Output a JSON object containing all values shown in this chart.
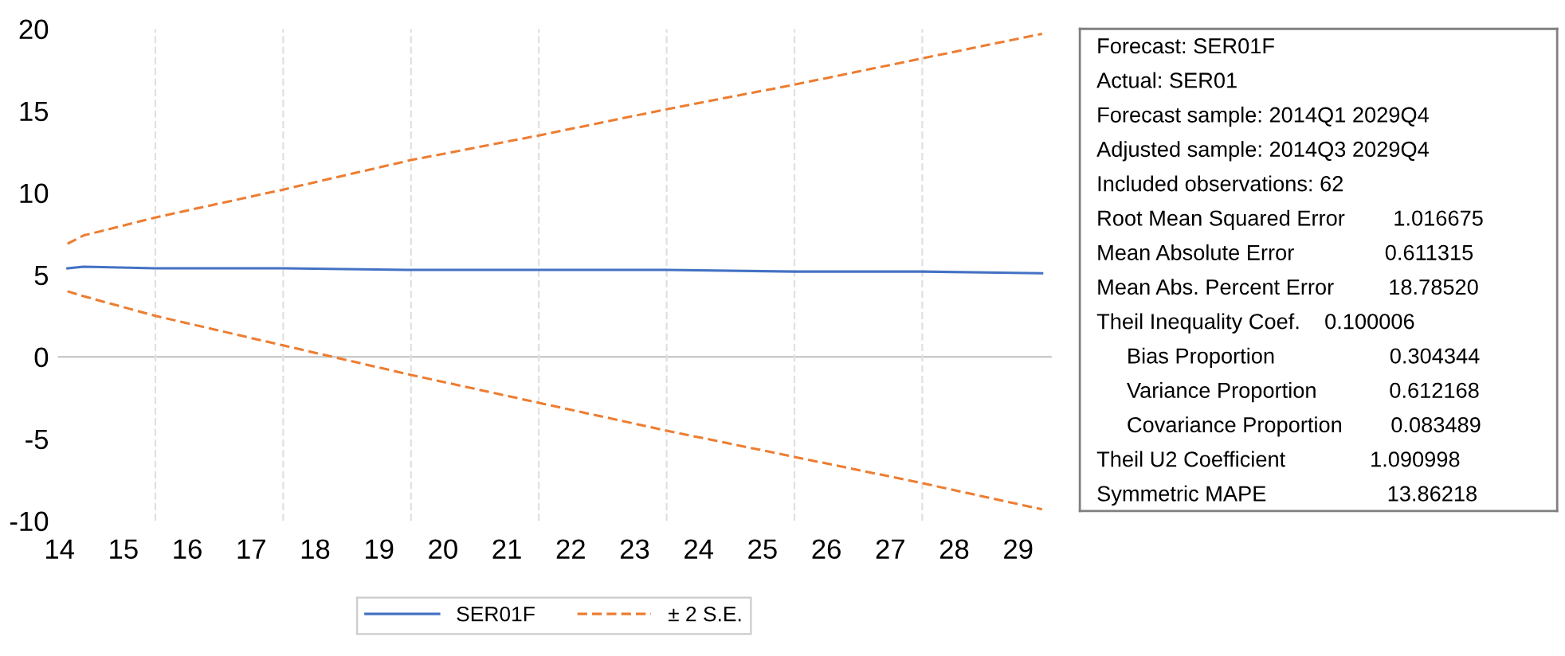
{
  "chart_data": {
    "type": "line",
    "xlim": [
      14.35,
      29.9
    ],
    "ylim": [
      -10,
      20
    ],
    "xticks": [
      {
        "value": 14.375,
        "label": "14"
      },
      {
        "value": 15.375,
        "label": "15"
      },
      {
        "value": 16.375,
        "label": "16"
      },
      {
        "value": 17.375,
        "label": "17"
      },
      {
        "value": 18.375,
        "label": "18"
      },
      {
        "value": 19.375,
        "label": "19"
      },
      {
        "value": 20.375,
        "label": "20"
      },
      {
        "value": 21.375,
        "label": "21"
      },
      {
        "value": 22.375,
        "label": "22"
      },
      {
        "value": 23.375,
        "label": "23"
      },
      {
        "value": 24.375,
        "label": "24"
      },
      {
        "value": 25.375,
        "label": "25"
      },
      {
        "value": 26.375,
        "label": "26"
      },
      {
        "value": 27.375,
        "label": "27"
      },
      {
        "value": 28.375,
        "label": "28"
      },
      {
        "value": 29.375,
        "label": "29"
      }
    ],
    "yticks": [
      -10,
      -5,
      0,
      5,
      10,
      15,
      20
    ],
    "series": [
      {
        "name": "SER01F",
        "color": "#4472c4",
        "line_style": "solid",
        "x": [
          14.5,
          14.75,
          15.875,
          17.875,
          19.875,
          21.875,
          23.875,
          25.875,
          27.875,
          29.75
        ],
        "values": [
          5.4,
          5.5,
          5.4,
          5.4,
          5.3,
          5.3,
          5.3,
          5.2,
          5.2,
          5.1
        ]
      },
      {
        "name": "± 2 S.E.",
        "color": "#ed7d31",
        "line_style": "dashed",
        "x": [
          14.5,
          14.75,
          15.875,
          17.875,
          19.875,
          21.875,
          23.875,
          25.875,
          27.875,
          29.75
        ],
        "values": [
          6.9,
          7.4,
          8.5,
          10.2,
          12.0,
          13.5,
          15.1,
          16.6,
          18.2,
          19.7
        ]
      },
      {
        "color": "#ed7d31",
        "line_style": "dashed",
        "x": [
          14.5,
          14.75,
          15.875,
          17.875,
          19.875,
          21.875,
          23.875,
          25.875,
          27.875,
          29.75
        ],
        "values": [
          4.0,
          3.7,
          2.5,
          0.7,
          -1.1,
          -2.8,
          -4.5,
          -6.1,
          -7.7,
          -9.3
        ]
      }
    ],
    "ref_lines": [
      {
        "axis": "y",
        "value": 0,
        "color": "#bfbfbf",
        "line_style": "solid"
      },
      {
        "axis": "x",
        "value": 15.875,
        "color": "#e0e0e0",
        "line_style": "dashed"
      },
      {
        "axis": "x",
        "value": 17.875,
        "color": "#e0e0e0",
        "line_style": "dashed"
      },
      {
        "axis": "x",
        "value": 19.875,
        "color": "#e0e0e0",
        "line_style": "dashed"
      },
      {
        "axis": "x",
        "value": 21.875,
        "color": "#e0e0e0",
        "line_style": "dashed"
      },
      {
        "axis": "x",
        "value": 23.875,
        "color": "#e0e0e0",
        "line_style": "dashed"
      },
      {
        "axis": "x",
        "value": 25.875,
        "color": "#e0e0e0",
        "line_style": "dashed"
      },
      {
        "axis": "x",
        "value": 27.875,
        "color": "#e0e0e0",
        "line_style": "dashed"
      }
    ],
    "grid": false,
    "legend": "bottom",
    "marker": "none",
    "annotations": [
      "Forecast: SER01F",
      "Actual: SER01",
      "Forecast sample: 2014Q1 2029Q4",
      "Adjusted sample: 2014Q3 2029Q4",
      "Included observations: 62",
      "Root Mean Squared Error        1.016675",
      "Mean Absolute Error               0.611315",
      "Mean Abs. Percent Error         18.78520",
      "Theil Inequality Coef.    0.100006",
      "     Bias Proportion                   0.304344",
      "     Variance Proportion            0.612168",
      "     Covariance Proportion        0.083489",
      "Theil U2 Coefficient              1.090998",
      "Symmetric MAPE                    13.86218"
    ]
  }
}
